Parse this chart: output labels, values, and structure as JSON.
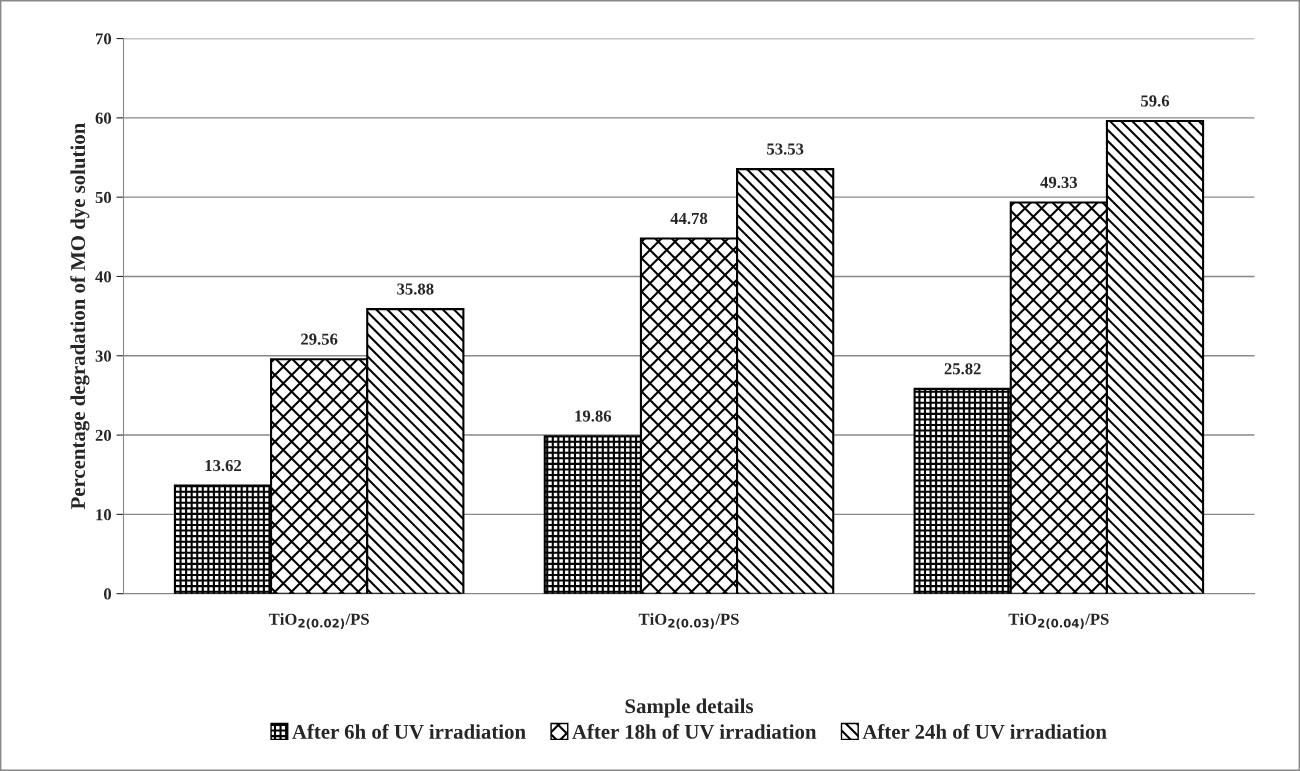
{
  "chart_data": {
    "type": "bar",
    "xlabel": "Sample details",
    "ylabel": "Percentage degradation of MO dye solution",
    "categories": [
      "TiO$_{2(0.02)}$/PS",
      "TiO$_{2(0.03)}$/PS",
      "TiO$_{2(0.04)}$/PS"
    ],
    "series": [
      {
        "name": "After 6h of UV irradiation",
        "color": "#000000",
        "values": [
          13.62,
          19.86,
          25.82
        ]
      },
      {
        "name": "After 18h of UV irradiation",
        "color": "#000000",
        "values": [
          29.56,
          44.78,
          49.33
        ]
      },
      {
        "name": "After 24h of UV irradiation",
        "color": "#000000",
        "values": [
          35.88,
          53.53,
          59.6
        ]
      }
    ],
    "ylim": [
      0,
      70
    ],
    "yticks": [
      0,
      10,
      20,
      30,
      40,
      50,
      60,
      70
    ],
    "grid": "y",
    "legend": "bottom",
    "data_labels": true
  }
}
